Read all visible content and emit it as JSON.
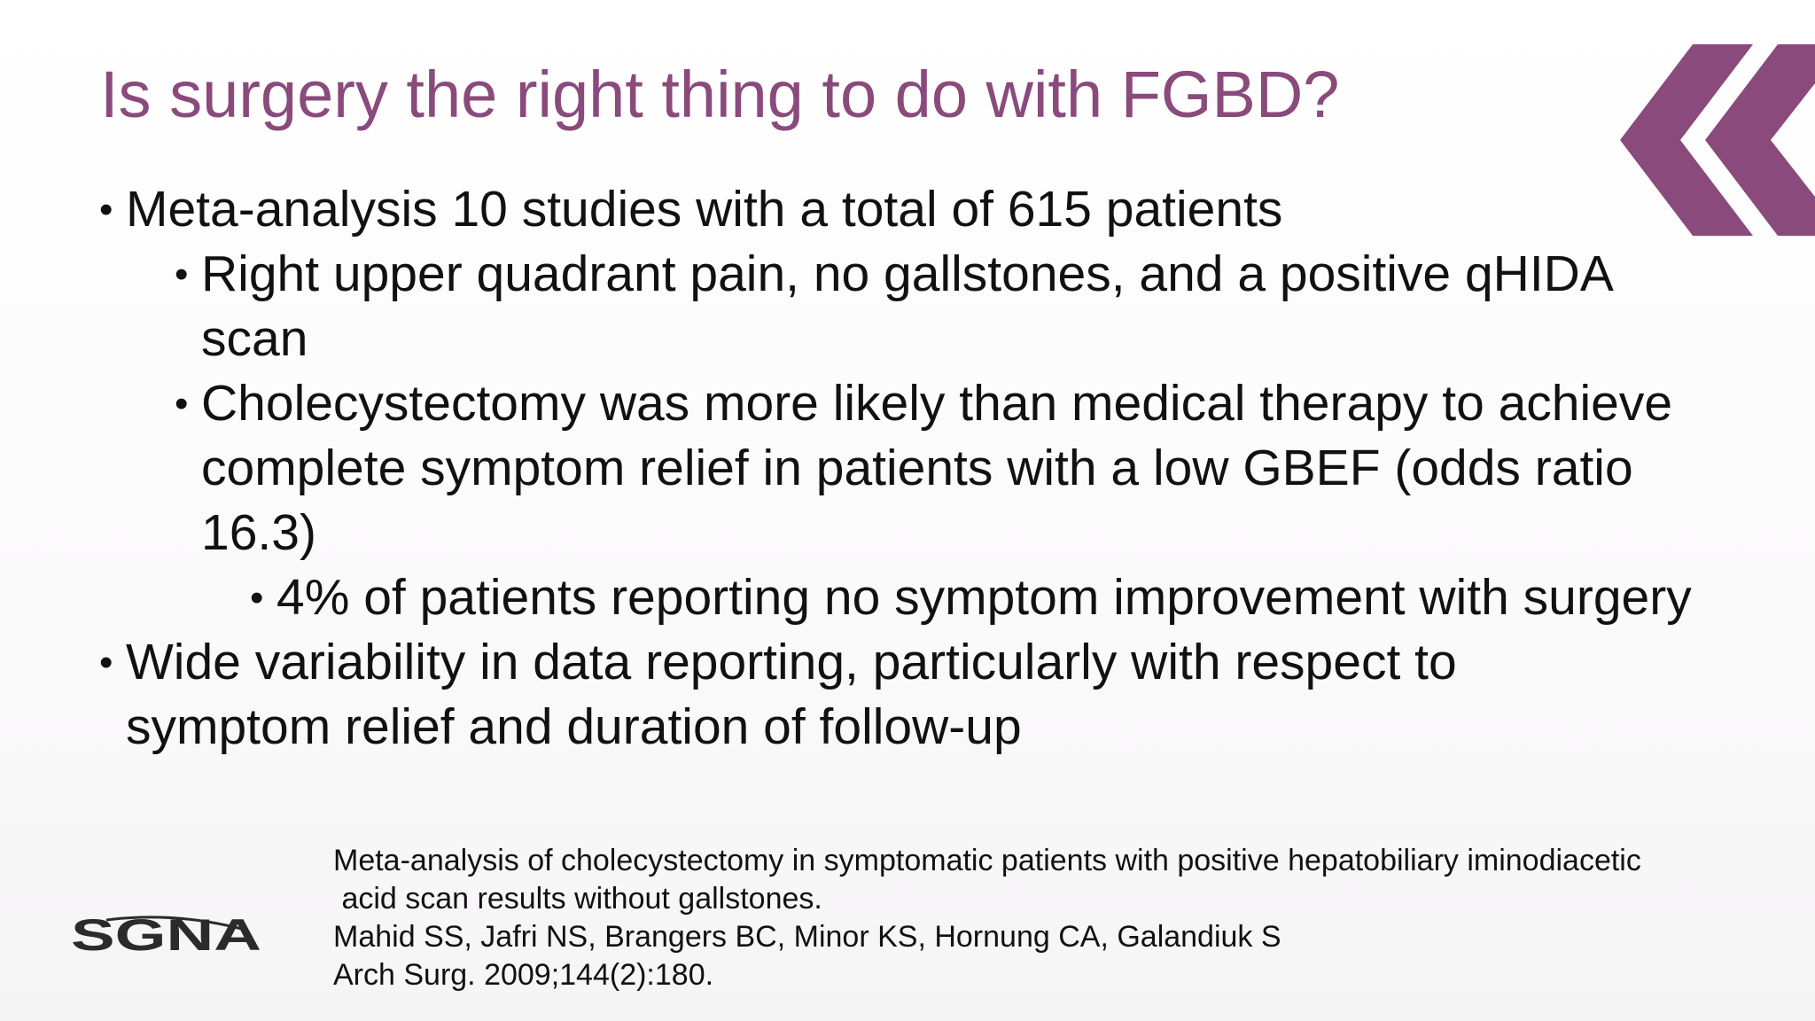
{
  "slide": {
    "title": "Is surgery the right thing to do with FGBD?",
    "accent_color": "#8a4a7c",
    "decoration": "double-chevron-left-icon",
    "bullets": [
      {
        "level": 1,
        "text": "Meta-analysis 10 studies with a total of 615 patients"
      },
      {
        "level": 2,
        "text": "Right upper quadrant pain, no gallstones, and a positive qHIDA scan"
      },
      {
        "level": 2,
        "text": "Cholecystectomy was more likely than medical therapy to achieve complete symptom relief in patients with a low GBEF (odds ratio 16.3)"
      },
      {
        "level": 3,
        "text": "4% of patients reporting no symptom improvement with surgery"
      },
      {
        "level": 1,
        "text": "Wide variability in data reporting, particularly with respect to symptom relief and duration of follow-up"
      }
    ],
    "bullet_symbol": "•"
  },
  "logo": {
    "text": "SGNA"
  },
  "reference": {
    "title_line1": "Meta-analysis of cholecystectomy in symptomatic patients with positive hepatobiliary iminodiacetic",
    "title_line2": " acid scan results without gallstones.",
    "authors": "Mahid SS, Jafri NS, Brangers BC, Minor KS, Hornung CA, Galandiuk S",
    "citation": "Arch Surg. 2009;144(2):180."
  }
}
